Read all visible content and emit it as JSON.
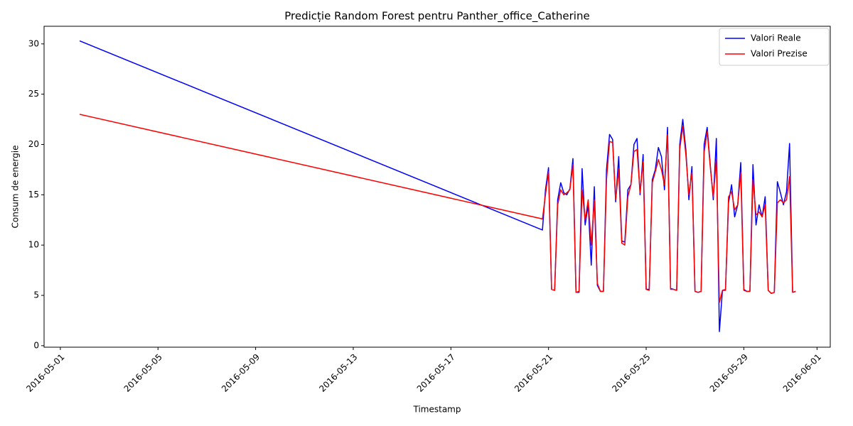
{
  "chart_data": {
    "type": "line",
    "title": "Predicție Random Forest pentru Panther_office_Catherine",
    "xlabel": "Timestamp",
    "ylabel": "Consum de energie",
    "x": [
      "2016-05-01T19:00",
      "2016-05-20T18:00",
      "2016-05-20T21:00",
      "2016-05-21T00:00",
      "2016-05-21T03:00",
      "2016-05-21T06:00",
      "2016-05-21T09:00",
      "2016-05-21T12:00",
      "2016-05-21T15:00",
      "2016-05-21T18:00",
      "2016-05-21T21:00",
      "2016-05-22T00:00",
      "2016-05-22T03:00",
      "2016-05-22T06:00",
      "2016-05-22T09:00",
      "2016-05-22T12:00",
      "2016-05-22T15:00",
      "2016-05-22T18:00",
      "2016-05-22T21:00",
      "2016-05-23T00:00",
      "2016-05-23T03:00",
      "2016-05-23T06:00",
      "2016-05-23T09:00",
      "2016-05-23T12:00",
      "2016-05-23T15:00",
      "2016-05-23T18:00",
      "2016-05-23T21:00",
      "2016-05-24T00:00",
      "2016-05-24T03:00",
      "2016-05-24T06:00",
      "2016-05-24T09:00",
      "2016-05-24T12:00",
      "2016-05-24T15:00",
      "2016-05-24T18:00",
      "2016-05-24T21:00",
      "2016-05-25T00:00",
      "2016-05-25T03:00",
      "2016-05-25T06:00",
      "2016-05-25T09:00",
      "2016-05-25T12:00",
      "2016-05-25T15:00",
      "2016-05-25T18:00",
      "2016-05-25T21:00",
      "2016-05-26T00:00",
      "2016-05-26T03:00",
      "2016-05-26T06:00",
      "2016-05-26T09:00",
      "2016-05-26T12:00",
      "2016-05-26T15:00",
      "2016-05-26T18:00",
      "2016-05-26T21:00",
      "2016-05-27T00:00",
      "2016-05-27T03:00",
      "2016-05-27T06:00",
      "2016-05-27T09:00",
      "2016-05-27T12:00",
      "2016-05-27T15:00",
      "2016-05-27T18:00",
      "2016-05-27T21:00",
      "2016-05-28T00:00",
      "2016-05-28T03:00",
      "2016-05-28T06:00",
      "2016-05-28T09:00",
      "2016-05-28T12:00",
      "2016-05-28T15:00",
      "2016-05-28T18:00",
      "2016-05-28T21:00",
      "2016-05-29T00:00",
      "2016-05-29T03:00",
      "2016-05-29T06:00",
      "2016-05-29T09:00",
      "2016-05-29T12:00",
      "2016-05-29T15:00",
      "2016-05-29T18:00",
      "2016-05-29T21:00",
      "2016-05-30T00:00",
      "2016-05-30T03:00",
      "2016-05-30T06:00",
      "2016-05-30T09:00",
      "2016-05-30T12:00",
      "2016-05-30T15:00",
      "2016-05-30T18:00",
      "2016-05-30T21:00",
      "2016-05-31T00:00",
      "2016-05-31T03:00"
    ],
    "series": [
      {
        "name": "Valori Reale",
        "color": "#0000ff",
        "values": [
          30.3,
          11.5,
          15.5,
          17.7,
          5.6,
          5.5,
          14.5,
          16.2,
          15.2,
          15.0,
          15.6,
          18.6,
          5.3,
          5.3,
          17.6,
          12.0,
          14.0,
          8.0,
          15.8,
          6.0,
          5.4,
          5.4,
          17.5,
          21.0,
          20.5,
          14.3,
          18.8,
          10.4,
          10.3,
          15.5,
          16.0,
          20.0,
          20.6,
          15.0,
          19.0,
          5.6,
          5.6,
          16.5,
          17.5,
          19.7,
          18.8,
          15.5,
          21.7,
          5.7,
          5.6,
          5.5,
          20.0,
          22.5,
          19.5,
          14.5,
          17.8,
          5.4,
          5.3,
          5.4,
          20.0,
          21.7,
          18.0,
          14.5,
          20.6,
          1.4,
          5.5,
          5.6,
          14.2,
          16.0,
          12.8,
          14.0,
          18.2,
          5.6,
          5.4,
          5.4,
          18.0,
          12.0,
          14.0,
          12.8,
          14.8,
          5.5,
          5.2,
          5.3,
          16.3,
          15.2,
          14.0,
          15.3,
          20.1,
          5.3,
          5.4
        ]
      },
      {
        "name": "Valori Prezise",
        "color": "#ff0000",
        "values": [
          23.0,
          12.6,
          15.0,
          17.3,
          5.6,
          5.5,
          14.0,
          15.5,
          15.0,
          15.2,
          15.5,
          18.0,
          5.3,
          5.4,
          15.5,
          12.5,
          14.5,
          10.0,
          14.5,
          6.2,
          5.4,
          5.4,
          16.5,
          20.3,
          20.2,
          14.5,
          17.5,
          10.2,
          10.0,
          14.8,
          16.0,
          19.3,
          19.5,
          15.2,
          18.3,
          5.6,
          5.5,
          16.2,
          17.3,
          18.5,
          17.5,
          16.0,
          21.0,
          5.6,
          5.6,
          5.5,
          19.5,
          21.8,
          19.0,
          15.0,
          17.2,
          5.4,
          5.3,
          5.4,
          19.2,
          21.3,
          17.8,
          14.8,
          18.5,
          4.3,
          5.5,
          5.5,
          14.8,
          15.3,
          13.5,
          14.0,
          17.2,
          5.5,
          5.4,
          5.4,
          16.5,
          13.0,
          13.3,
          12.8,
          14.0,
          5.5,
          5.2,
          5.3,
          14.2,
          14.5,
          14.2,
          14.5,
          16.8,
          5.3,
          5.4
        ]
      }
    ],
    "xlim": [
      "2016-04-30T08:00",
      "2016-06-01T13:00"
    ],
    "xticks": [
      "2016-05-01",
      "2016-05-05",
      "2016-05-09",
      "2016-05-13",
      "2016-05-17",
      "2016-05-21",
      "2016-05-25",
      "2016-05-29",
      "2016-06-01"
    ],
    "ylim": [
      -0.15,
      31.75
    ],
    "yticks": [
      0,
      5,
      10,
      15,
      20,
      25,
      30
    ],
    "legend": "upper right",
    "grid": false
  }
}
